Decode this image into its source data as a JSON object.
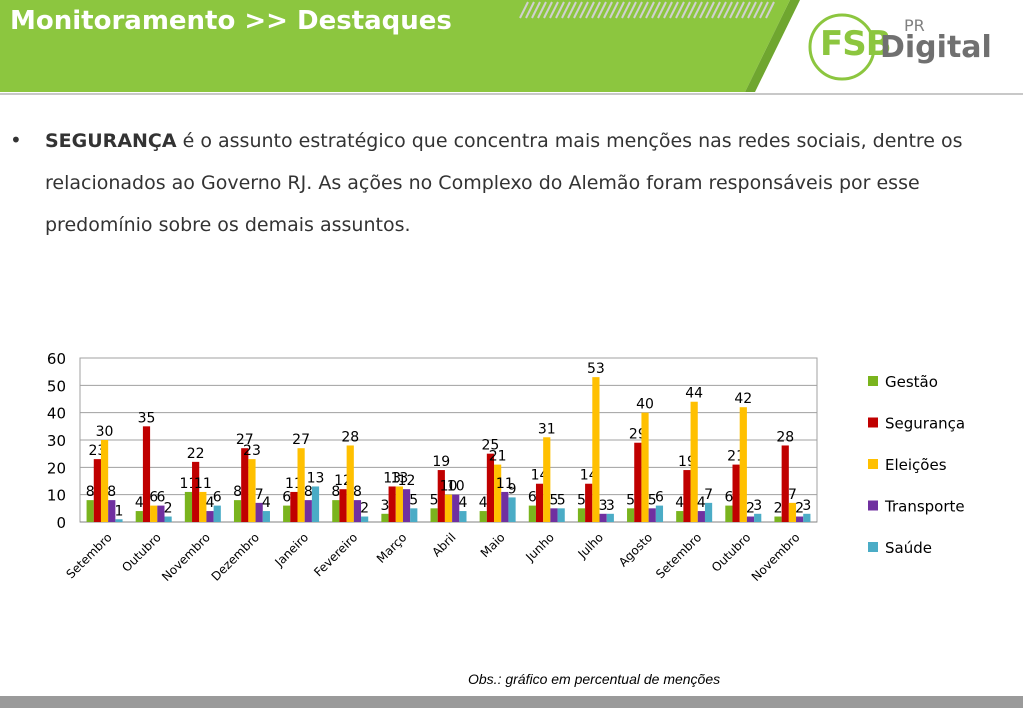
{
  "header": {
    "title": "Monitoramento >> Destaques",
    "logo": {
      "fsb": "FSB",
      "pr": "PR",
      "digital": "Digital"
    }
  },
  "bullet": {
    "highlight": "SEGURANÇA",
    "text": " é o assunto estratégico que concentra mais menções nas redes sociais, dentre os relacionados ao Governo RJ. As ações no Complexo do Alemão foram responsáveis por esse predomínio sobre os demais assuntos."
  },
  "footnote": "Obs.: gráfico em percentual de menções",
  "colors": {
    "header_green": "#8cc63f",
    "Gestão": "#7ab41e",
    "Segurança": "#c00000",
    "Eleições": "#ffc000",
    "Transporte": "#7030a0",
    "Saúde": "#4bacc6"
  },
  "chart_data": {
    "type": "bar",
    "categories": [
      "Setembro",
      "Outubro",
      "Novembro",
      "Dezembro",
      "Janeiro",
      "Fevereiro",
      "Março",
      "Abril",
      "Maio",
      "Junho",
      "Julho",
      "Agosto",
      "Setembro",
      "Outubro",
      "Novembro"
    ],
    "series": [
      {
        "name": "Gestão",
        "values": [
          8,
          4,
          11,
          8,
          6,
          8,
          3,
          5,
          4,
          6,
          5,
          5,
          4,
          6,
          2
        ]
      },
      {
        "name": "Segurança",
        "values": [
          23,
          35,
          22,
          27,
          11,
          12,
          13,
          19,
          25,
          14,
          14,
          29,
          19,
          21,
          28
        ]
      },
      {
        "name": "Eleições",
        "values": [
          30,
          6,
          11,
          23,
          27,
          28,
          13,
          10,
          21,
          31,
          53,
          40,
          44,
          42,
          7
        ]
      },
      {
        "name": "Transporte",
        "values": [
          8,
          6,
          4,
          7,
          8,
          8,
          12,
          10,
          11,
          5,
          3,
          5,
          4,
          2,
          2
        ]
      },
      {
        "name": "Saúde",
        "values": [
          1,
          2,
          6,
          4,
          13,
          2,
          5,
          4,
          9,
          5,
          3,
          6,
          7,
          3,
          3
        ]
      }
    ],
    "yticks": [
      "0",
      "10",
      "20",
      "30",
      "40",
      "50",
      "60"
    ],
    "ylim": [
      0,
      60
    ],
    "grid": true,
    "legend": "right"
  }
}
